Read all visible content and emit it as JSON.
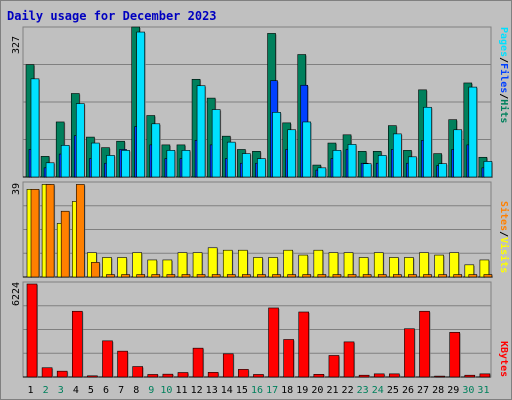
{
  "title": "Daily usage for December 2023",
  "colors": {
    "background": "#c0c0c0",
    "title": "#0000c0",
    "hits": "#00805c",
    "files": "#0040ff",
    "pages": "#00e0ff",
    "visits": "#ffff00",
    "sites": "#ff8000",
    "kbytes": "#ff0000",
    "weekday": "#000000",
    "weekend": "#00805c"
  },
  "legend": {
    "top": {
      "pages": "Pages",
      "files": "Files",
      "hits": "Hits",
      "sep": "/"
    },
    "middle": {
      "sites": "Sites",
      "visits": "Visits",
      "sep": "/"
    },
    "bottom": {
      "kbytes": "KBytes"
    }
  },
  "chart_data": [
    {
      "type": "bar",
      "categories": [
        "1",
        "2",
        "3",
        "4",
        "5",
        "6",
        "7",
        "8",
        "9",
        "10",
        "11",
        "12",
        "13",
        "14",
        "15",
        "16",
        "17",
        "18",
        "19",
        "20",
        "21",
        "22",
        "23",
        "24",
        "25",
        "26",
        "27",
        "28",
        "29",
        "30",
        "31"
      ],
      "weekend_days": [
        2,
        3,
        9,
        10,
        16,
        17,
        23,
        24,
        30,
        31
      ],
      "ymax_label": "327",
      "ylim": [
        0,
        327
      ],
      "grid": true,
      "series": [
        {
          "name": "Hits",
          "values": [
            245,
            45,
            120,
            182,
            87,
            64,
            78,
            327,
            134,
            70,
            70,
            213,
            172,
            89,
            60,
            56,
            313,
            118,
            267,
            26,
            74,
            92,
            56,
            56,
            112,
            58,
            190,
            51,
            125,
            205,
            43
          ]
        },
        {
          "name": "Files",
          "values": [
            60,
            20,
            50,
            90,
            40,
            30,
            60,
            110,
            70,
            40,
            40,
            80,
            70,
            40,
            30,
            30,
            210,
            60,
            200,
            15,
            40,
            60,
            30,
            30,
            60,
            30,
            80,
            25,
            60,
            70,
            20
          ]
        },
        {
          "name": "Pages",
          "values": [
            214,
            31,
            69,
            160,
            74,
            47,
            58,
            316,
            116,
            58,
            58,
            199,
            147,
            76,
            51,
            40,
            141,
            103,
            120,
            20,
            58,
            71,
            29,
            47,
            94,
            44,
            152,
            29,
            103,
            196,
            34
          ]
        }
      ]
    },
    {
      "type": "bar",
      "categories": [
        "1",
        "2",
        "3",
        "4",
        "5",
        "6",
        "7",
        "8",
        "9",
        "10",
        "11",
        "12",
        "13",
        "14",
        "15",
        "16",
        "17",
        "18",
        "19",
        "20",
        "21",
        "22",
        "23",
        "24",
        "25",
        "26",
        "27",
        "28",
        "29",
        "30",
        "31"
      ],
      "ymax_label": "39",
      "ylim": [
        0,
        39
      ],
      "series": [
        {
          "name": "Visits",
          "values": [
            36,
            38,
            22,
            31,
            10,
            8,
            8,
            10,
            7,
            7,
            10,
            10,
            12,
            11,
            11,
            8,
            8,
            11,
            9,
            11,
            10,
            10,
            8,
            10,
            8,
            8,
            10,
            9,
            10,
            5,
            7
          ]
        },
        {
          "name": "Sites",
          "values": [
            36,
            38,
            27,
            38,
            6,
            1,
            1,
            1,
            1,
            1,
            1,
            1,
            1,
            1,
            1,
            1,
            1,
            1,
            1,
            1,
            1,
            1,
            1,
            1,
            1,
            1,
            1,
            1,
            1,
            1,
            1
          ]
        }
      ]
    },
    {
      "type": "bar",
      "categories": [
        "1",
        "2",
        "3",
        "4",
        "5",
        "6",
        "7",
        "8",
        "9",
        "10",
        "11",
        "12",
        "13",
        "14",
        "15",
        "16",
        "17",
        "18",
        "19",
        "20",
        "21",
        "22",
        "23",
        "24",
        "25",
        "26",
        "27",
        "28",
        "29",
        "30",
        "31"
      ],
      "ymax_label": "6224",
      "ylim": [
        0,
        6224
      ],
      "series": [
        {
          "name": "KBytes",
          "values": [
            6224,
            620,
            390,
            4400,
            80,
            2420,
            1730,
            700,
            170,
            190,
            300,
            1930,
            310,
            1550,
            510,
            170,
            4620,
            2510,
            4350,
            180,
            1440,
            2350,
            120,
            210,
            210,
            3230,
            4400,
            60,
            2990,
            120,
            210
          ]
        }
      ]
    }
  ]
}
